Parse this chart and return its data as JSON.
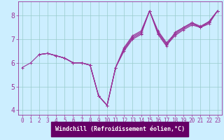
{
  "bg_color": "#cceeff",
  "plot_bg": "#cceeff",
  "line_color": "#993399",
  "grid_color": "#99cccc",
  "bottom_bar_color": "#660066",
  "tick_color": "#993399",
  "xlabel": "Windchill (Refroidissement éolien,°C)",
  "xlim_min": -0.5,
  "xlim_max": 23.5,
  "ylim_min": 3.8,
  "ylim_max": 8.6,
  "xticks": [
    0,
    1,
    2,
    3,
    4,
    5,
    6,
    7,
    8,
    9,
    10,
    11,
    12,
    13,
    14,
    15,
    16,
    17,
    18,
    19,
    20,
    21,
    22,
    23
  ],
  "yticks": [
    4,
    5,
    6,
    7,
    8
  ],
  "lines": [
    {
      "x": [
        0,
        1,
        2,
        3,
        4,
        5,
        6,
        7,
        8,
        9,
        10,
        11,
        12,
        13,
        14,
        15,
        16,
        17,
        18,
        19,
        20,
        21,
        22,
        23
      ],
      "y": [
        5.8,
        6.0,
        6.35,
        6.4,
        6.3,
        6.2,
        6.0,
        6.0,
        5.9,
        4.6,
        4.2,
        5.8,
        6.5,
        7.0,
        7.2,
        8.2,
        7.2,
        6.7,
        7.3,
        7.5,
        7.7,
        7.5,
        7.75,
        8.2
      ]
    },
    {
      "x": [
        2,
        3,
        4,
        5,
        6,
        7,
        8,
        9,
        10,
        11,
        12,
        13,
        14,
        15,
        16,
        17,
        18,
        19,
        20,
        21,
        22,
        23
      ],
      "y": [
        6.35,
        6.4,
        6.3,
        6.2,
        6.0,
        6.0,
        5.9,
        4.6,
        4.2,
        5.8,
        6.55,
        7.05,
        7.25,
        8.2,
        7.25,
        6.75,
        7.15,
        7.4,
        7.6,
        7.5,
        7.65,
        8.2
      ]
    },
    {
      "x": [
        2,
        3,
        4,
        5,
        6,
        7,
        8,
        9,
        10,
        11,
        12,
        13,
        14,
        15,
        16,
        17,
        18,
        19,
        20,
        21,
        22,
        23
      ],
      "y": [
        6.35,
        6.4,
        6.3,
        6.2,
        6.0,
        6.0,
        5.9,
        4.6,
        4.2,
        5.8,
        6.6,
        7.1,
        7.3,
        8.2,
        7.3,
        6.8,
        7.2,
        7.45,
        7.65,
        7.5,
        7.7,
        8.2
      ]
    },
    {
      "x": [
        2,
        3,
        4,
        5,
        6,
        7,
        8,
        9,
        10,
        11,
        12,
        13,
        14,
        15,
        16,
        17,
        18,
        19,
        20,
        21,
        22,
        23
      ],
      "y": [
        6.35,
        6.4,
        6.3,
        6.2,
        6.0,
        6.0,
        5.9,
        4.6,
        4.2,
        5.8,
        6.65,
        7.15,
        7.35,
        8.2,
        7.35,
        6.85,
        7.25,
        7.5,
        7.7,
        7.55,
        7.75,
        8.2
      ]
    }
  ],
  "linewidth": 0.8,
  "markersize": 3.0,
  "tick_fontsize": 5.5,
  "label_fontsize": 6.0
}
